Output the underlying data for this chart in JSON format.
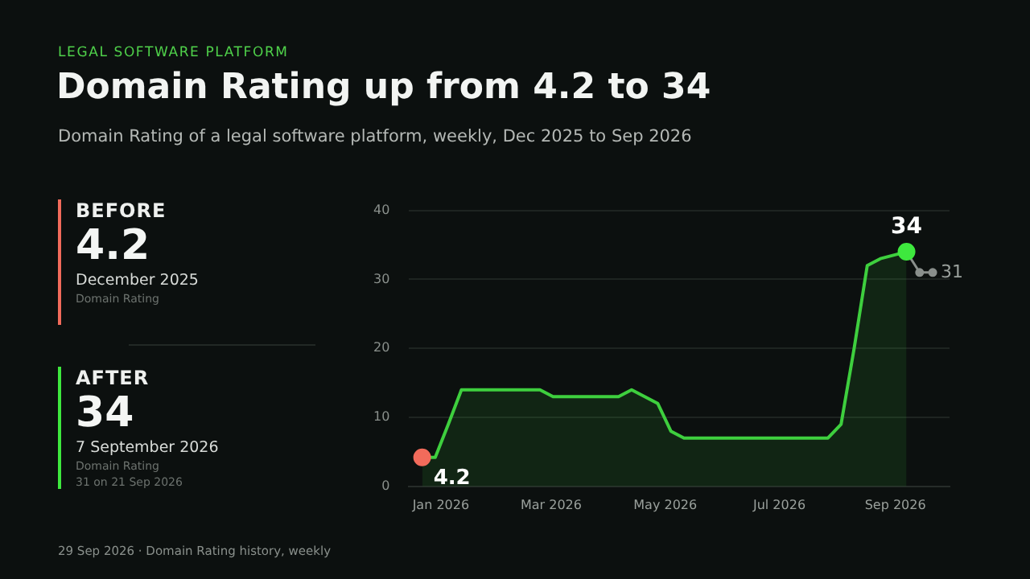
{
  "chart_data": {
    "type": "area",
    "title": "Domain Rating up from 4.2 to 34",
    "subtitle": "Domain Rating of a legal software platform, weekly, Dec 2025 to Sep 2026",
    "x": [
      "2025-12-22",
      "2025-12-29",
      "2026-01-05",
      "2026-01-12",
      "2026-01-19",
      "2026-01-26",
      "2026-02-02",
      "2026-02-09",
      "2026-02-16",
      "2026-02-23",
      "2026-03-02",
      "2026-03-09",
      "2026-03-16",
      "2026-03-23",
      "2026-03-30",
      "2026-04-06",
      "2026-04-13",
      "2026-04-20",
      "2026-04-27",
      "2026-05-04",
      "2026-05-11",
      "2026-05-18",
      "2026-05-25",
      "2026-06-01",
      "2026-06-08",
      "2026-06-15",
      "2026-06-22",
      "2026-06-29",
      "2026-07-06",
      "2026-07-13",
      "2026-07-20",
      "2026-07-27",
      "2026-08-03",
      "2026-08-10",
      "2026-08-17",
      "2026-08-24",
      "2026-08-31",
      "2026-09-07"
    ],
    "series": [
      {
        "color": "#3ecf3e",
        "marker": "none",
        "values": [
          4.2,
          4.2,
          9,
          14,
          14,
          14,
          14,
          14,
          14,
          14,
          13,
          13,
          13,
          13,
          13,
          13,
          14,
          13,
          12,
          8,
          7,
          7,
          7,
          7,
          7,
          7,
          7,
          7,
          7,
          7,
          7,
          7,
          9,
          20,
          32,
          33,
          33.5,
          34
        ]
      },
      {
        "type": "line",
        "color": "#8a8f8c",
        "marker": "circle",
        "x": [
          "2026-09-07",
          "2026-09-14",
          "2026-09-21"
        ],
        "values": [
          34,
          31,
          31
        ]
      },
      {
        "type": "scatter",
        "color": "#f26b5b",
        "marker": "circle",
        "x": [
          "2025-12-22"
        ],
        "values": [
          4.2
        ]
      },
      {
        "type": "scatter",
        "color": "#3ee83e",
        "marker": "circle",
        "x": [
          "2026-09-07"
        ],
        "values": [
          34
        ]
      }
    ],
    "xlim": [
      "2025-12-15",
      "2026-09-30"
    ],
    "xticks": [
      {
        "value": "2026-01-01",
        "label": "Jan 2026"
      },
      {
        "value": "2026-03-01",
        "label": "Mar 2026"
      },
      {
        "value": "2026-05-01",
        "label": "May 2026"
      },
      {
        "value": "2026-07-01",
        "label": "Jul 2026"
      },
      {
        "value": "2026-09-01",
        "label": "Sep 2026"
      }
    ],
    "ylim": [
      0,
      40
    ],
    "yticks": [
      0,
      10,
      20,
      30,
      40
    ],
    "grid": "y",
    "legend": false,
    "annotations": [
      "LEGAL SOFTWARE PLATFORM",
      "BEFORE",
      "4.2",
      "December 2025",
      "Domain Rating",
      "AFTER",
      "34",
      "7 September 2026",
      "Domain Rating",
      "31 on 21 Sep 2026",
      "29 Sep 2026 · Domain Rating history, weekly",
      {
        "text": "4.2",
        "x": "2025-12-22",
        "y": 4.2
      },
      {
        "text": "34",
        "x": "2026-09-07",
        "y": 34
      },
      {
        "text": "31",
        "x": "2026-09-21",
        "y": 31
      }
    ]
  }
}
